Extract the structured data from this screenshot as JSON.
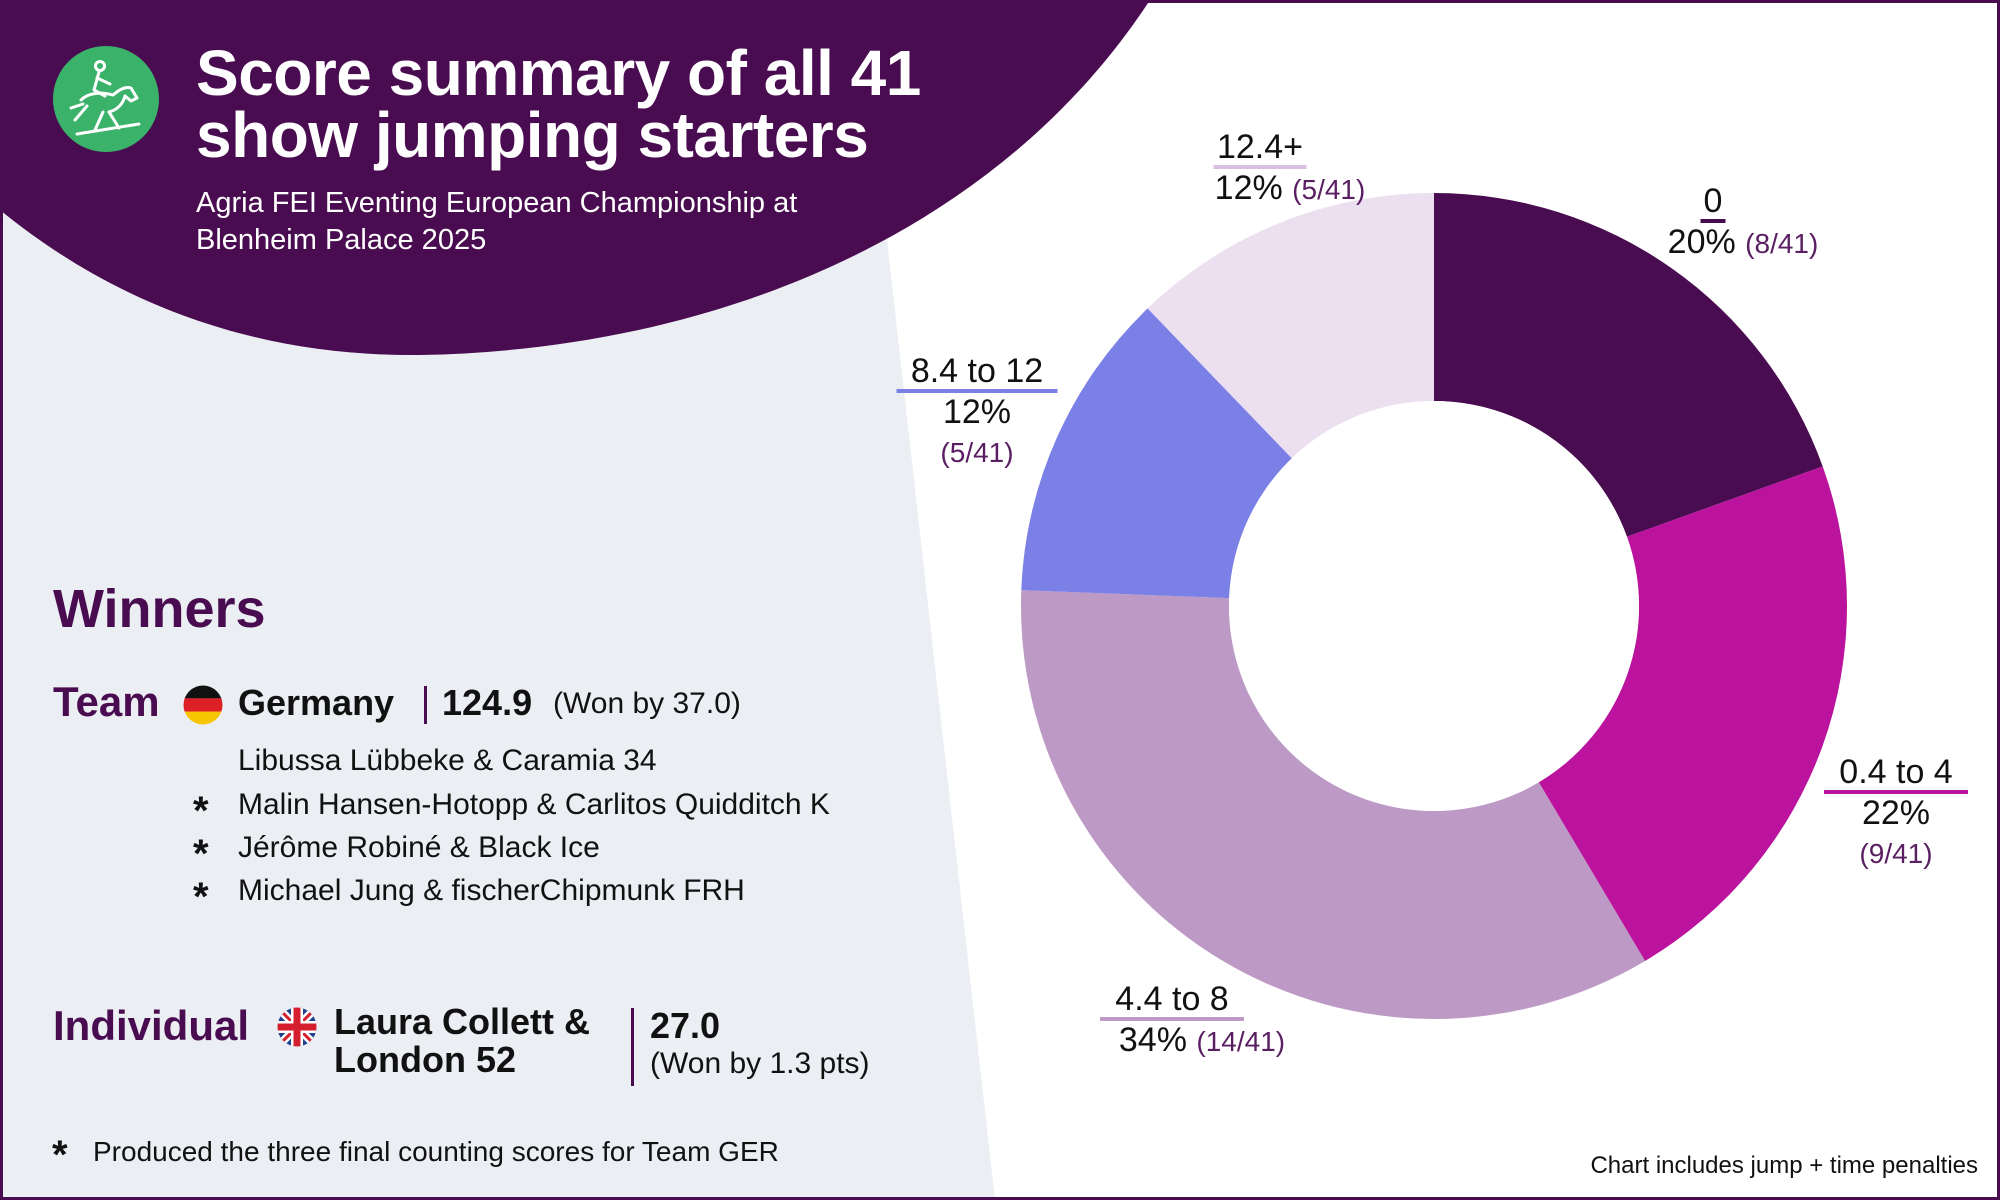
{
  "header": {
    "title": "Score summary of all 41 show jumping starters",
    "subtitle": "Agria FEI Eventing European Championship at Blenheim Palace 2025",
    "logo_icon": "equestrian-jumping-icon"
  },
  "colors": {
    "brand_purple": "#4a0c50",
    "panel_grey": "#ebeef3",
    "logo_green": "#3bb26a",
    "fraction_purple": "#5a1e62"
  },
  "winners": {
    "heading": "Winners",
    "team": {
      "label": "Team",
      "flag_icon": "germany-flag-icon",
      "country": "Germany",
      "score": "124.9",
      "margin": "(Won by 37.0)",
      "members": [
        {
          "name": "Libussa Lübbeke & Caramia 34",
          "counting": false
        },
        {
          "name": "Malin Hansen-Hotopp & Carlitos Quidditch K",
          "counting": true
        },
        {
          "name": "Jérôme Robiné & Black Ice",
          "counting": true
        },
        {
          "name": "Michael Jung & fischerChipmunk FRH",
          "counting": true
        }
      ]
    },
    "individual": {
      "label": "Individual",
      "flag_icon": "united-kingdom-flag-icon",
      "rider": "Laura Collett & London 52",
      "score": "27.0",
      "margin": "(Won by 1.3 pts)"
    },
    "asterisk": "*",
    "footnote": "Produced the three final counting scores for Team GER"
  },
  "chart_data": {
    "type": "donut",
    "total": 41,
    "slices": [
      {
        "label": "0",
        "count": 8,
        "percent": "20%",
        "fraction": "(8/41)",
        "color": "#4a0c50"
      },
      {
        "label": "0.4 to 4",
        "count": 9,
        "percent": "22%",
        "fraction": "(9/41)",
        "color": "#bb139e"
      },
      {
        "label": "4.4 to 8",
        "count": 14,
        "percent": "34%",
        "fraction": "(14/41)",
        "color": "#bd99c5"
      },
      {
        "label": "8.4 to 12",
        "count": 5,
        "percent": "12%",
        "fraction": "(5/41)",
        "color": "#7b80e6"
      },
      {
        "label": "12.4+",
        "count": 5,
        "percent": "12%",
        "fraction": "(5/41)",
        "color": "#ecdff0"
      }
    ],
    "note": "Chart includes jump + time penalties"
  }
}
